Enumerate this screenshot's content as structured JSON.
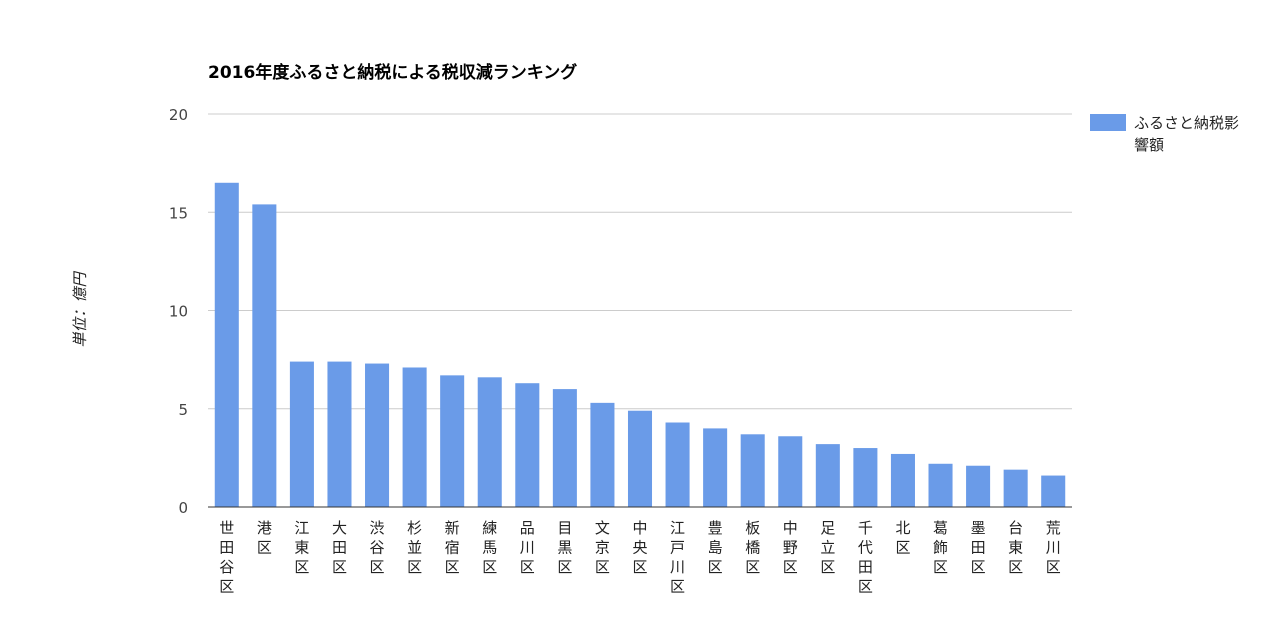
{
  "chart_data": {
    "type": "bar",
    "title": "2016年度ふるさと納税による税収減ランキング",
    "xlabel": "",
    "ylabel": "単位：億円",
    "ylim": [
      0,
      20
    ],
    "yticks": [
      0,
      5,
      10,
      15,
      20
    ],
    "grid": true,
    "legend_position": "right",
    "categories": [
      "世田谷区",
      "港区",
      "江東区",
      "大田区",
      "渋谷区",
      "杉並区",
      "新宿区",
      "練馬区",
      "品川区",
      "目黒区",
      "文京区",
      "中央区",
      "江戸川区",
      "豊島区",
      "板橋区",
      "中野区",
      "足立区",
      "千代田区",
      "北区",
      "葛飾区",
      "墨田区",
      "台東区",
      "荒川区"
    ],
    "series": [
      {
        "name": "ふるさと納税影響額",
        "color": "#6a9be8",
        "values": [
          16.5,
          15.4,
          7.4,
          7.4,
          7.3,
          7.1,
          6.7,
          6.6,
          6.3,
          6.0,
          5.3,
          4.9,
          4.3,
          4.0,
          3.7,
          3.6,
          3.2,
          3.0,
          2.7,
          2.2,
          2.1,
          1.9,
          1.6
        ]
      }
    ]
  }
}
